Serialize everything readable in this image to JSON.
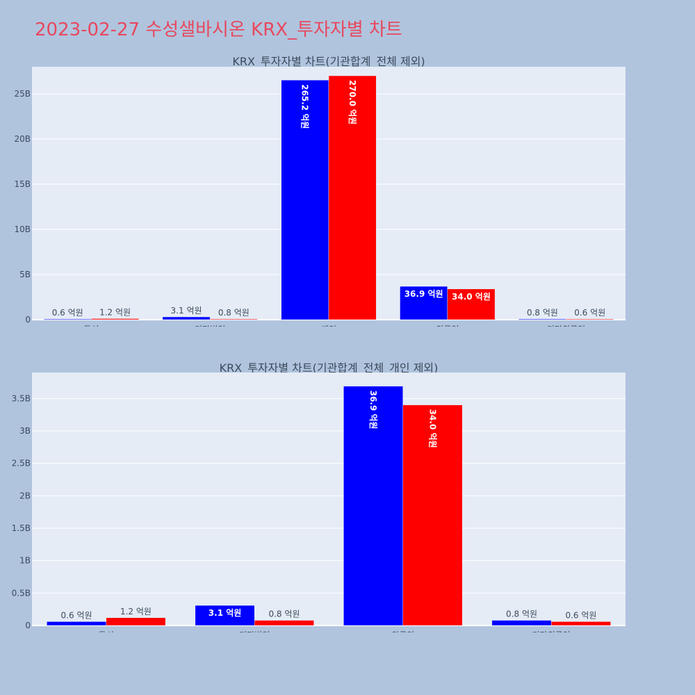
{
  "page": {
    "title": "2023-02-27 수성샐바시온 KRX_투자자별 차트",
    "title_color": "#e8485e",
    "background": "#b0c4de",
    "plot_background": "#e5ecf6"
  },
  "chart_data": [
    {
      "type": "bar",
      "title": "KRX_투자자별 차트(기관합계_전체 제외)",
      "xlabel": "",
      "ylabel": "",
      "categories": [
        "투신",
        "기타법인",
        "개인",
        "외국인",
        "기타외국인"
      ],
      "series": [
        {
          "color": "#0000ff",
          "values": [
            60000000,
            310000000,
            26520000000,
            3690000000,
            80000000
          ],
          "labels": [
            "0.6 억원",
            "3.1 억원",
            "265.2 억원",
            "36.9 억원",
            "0.8 억원"
          ]
        },
        {
          "color": "#ff0000",
          "values": [
            120000000,
            80000000,
            27000000000,
            3400000000,
            60000000
          ],
          "labels": [
            "1.2 억원",
            "0.8 억원",
            "270.0 억원",
            "34.0 억원",
            "0.6 억원"
          ]
        }
      ],
      "ylim": [
        0,
        28000000000
      ],
      "yticks": [
        0,
        5000000000,
        10000000000,
        15000000000,
        20000000000,
        25000000000
      ],
      "yticklabels": [
        "0",
        "5B",
        "10B",
        "15B",
        "20B",
        "25B"
      ],
      "grid": true,
      "legend": "none"
    },
    {
      "type": "bar",
      "title": "KRX_투자자별 차트(기관합계_전체_개인 제외)",
      "xlabel": "",
      "ylabel": "",
      "categories": [
        "투신",
        "기타법인",
        "외국인",
        "기타외국인"
      ],
      "series": [
        {
          "color": "#0000ff",
          "values": [
            60000000,
            310000000,
            3690000000,
            80000000
          ],
          "labels": [
            "0.6 억원",
            "3.1 억원",
            "36.9 억원",
            "0.8 억원"
          ]
        },
        {
          "color": "#ff0000",
          "values": [
            120000000,
            80000000,
            3400000000,
            60000000
          ],
          "labels": [
            "1.2 억원",
            "0.8 억원",
            "34.0 억원",
            "0.6 억원"
          ]
        }
      ],
      "ylim": [
        0,
        3900000000
      ],
      "yticks": [
        0,
        500000000,
        1000000000,
        1500000000,
        2000000000,
        2500000000,
        3000000000,
        3500000000
      ],
      "yticklabels": [
        "0",
        "0.5B",
        "1B",
        "1.5B",
        "2B",
        "2.5B",
        "3B",
        "3.5B"
      ],
      "grid": true,
      "legend": "none"
    }
  ]
}
